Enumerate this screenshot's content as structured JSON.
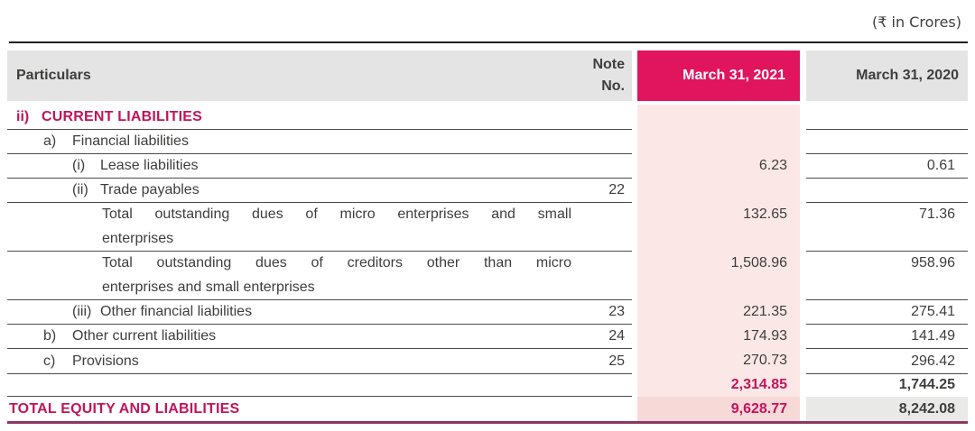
{
  "meta": {
    "currency_note": "(₹ in Crores)"
  },
  "header": {
    "particulars": "Particulars",
    "note_line1": "Note",
    "note_line2": "No.",
    "col_2021": "March 31, 2021",
    "col_2020": "March 31, 2020"
  },
  "table": {
    "rows": [
      {
        "kind": "section",
        "marker": "ii)",
        "label": "CURRENT LIABILITIES",
        "note": "",
        "v2021": "",
        "v2020": "",
        "sep": "all"
      },
      {
        "kind": "lvl2",
        "marker": "a)",
        "label": "Financial liabilities",
        "note": "",
        "v2021": "",
        "v2020": "",
        "sep": "all"
      },
      {
        "kind": "lvl3",
        "marker": "(i)",
        "label": "Lease liabilities",
        "note": "",
        "v2021": "6.23",
        "v2020": "0.61",
        "sep": "all"
      },
      {
        "kind": "lvl3",
        "marker": "(ii)",
        "label": "Trade payables",
        "note": "22",
        "v2021": "",
        "v2020": "",
        "sep": "all"
      },
      {
        "kind": "wrap",
        "line1": "Total outstanding dues of micro enterprises and small",
        "line2": "enterprises",
        "note": "",
        "v2021": "132.65",
        "v2020": "71.36",
        "sep": "all"
      },
      {
        "kind": "wrap",
        "line1": "Total outstanding dues of creditors other than micro",
        "line2": "enterprises and small enterprises",
        "note": "",
        "v2021": "1,508.96",
        "v2020": "958.96",
        "sep": "all"
      },
      {
        "kind": "lvl3",
        "marker": "(iii)",
        "label": "Other financial liabilities",
        "note": "23",
        "v2021": "221.35",
        "v2020": "275.41",
        "sep": "all"
      },
      {
        "kind": "lvl2",
        "marker": "b)",
        "label": "Other current liabilities",
        "note": "24",
        "v2021": "174.93",
        "v2020": "141.49",
        "sep": "all"
      },
      {
        "kind": "lvl2",
        "marker": "c)",
        "label": "Provisions",
        "note": "25",
        "v2021": "270.73",
        "v2020": "296.42",
        "sep": "prov"
      },
      {
        "kind": "subtotal",
        "marker": "",
        "label": "",
        "note": "",
        "v2021": "2,314.85",
        "v2020": "1,744.25",
        "sep": "left"
      },
      {
        "kind": "total",
        "marker": "",
        "label": "TOTAL EQUITY AND LIABILITIES",
        "note": "",
        "v2021": "9,628.77",
        "v2020": "8,242.08",
        "sep": "none"
      }
    ]
  },
  "colors": {
    "accent_header_bg": "#E0155E",
    "accent_text": "#C2145C",
    "column_2021_bg": "#FBE8E6",
    "total_2021_bg": "#F7D9D8",
    "header_gray_bg": "#E4E4E4",
    "total_2020_bg": "#E9E9E8",
    "separator": "#4A4A48",
    "bottom_rule": "#8A3766",
    "text": "#3E3E3D"
  }
}
